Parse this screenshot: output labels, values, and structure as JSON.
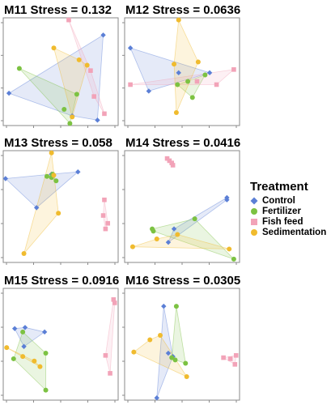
{
  "legend": {
    "title": "Treatment",
    "items": [
      {
        "label": "Control",
        "color": "#5b7fd6",
        "shape": "diamond"
      },
      {
        "label": "Fertilizer",
        "color": "#7cc242",
        "shape": "circle"
      },
      {
        "label": "Fish feed",
        "color": "#f2a3b8",
        "shape": "square"
      },
      {
        "label": "Sedimentation",
        "color": "#f0bb2e",
        "shape": "circle"
      }
    ]
  },
  "chart_data": [
    {
      "type": "scatter",
      "title": "M11 Stress = 0.132",
      "series": [
        {
          "name": "Control",
          "points": [
            [
              0.05,
              0.7
            ],
            [
              0.87,
              0.16
            ],
            [
              0.82,
              0.95
            ],
            [
              0.6,
              0.91
            ]
          ]
        },
        {
          "name": "Fertilizer",
          "points": [
            [
              0.14,
              0.47
            ],
            [
              0.64,
              0.71
            ],
            [
              0.53,
              0.85
            ],
            [
              0.58,
              0.98
            ]
          ]
        },
        {
          "name": "Fish feed",
          "points": [
            [
              0.57,
              0.02
            ],
            [
              0.76,
              0.49
            ],
            [
              0.79,
              0.73
            ],
            [
              0.88,
              0.89
            ]
          ]
        },
        {
          "name": "Sedimentation",
          "points": [
            [
              0.44,
              0.28
            ],
            [
              0.66,
              0.39
            ],
            [
              0.73,
              0.44
            ],
            [
              0.6,
              0.92
            ]
          ]
        }
      ]
    },
    {
      "type": "scatter",
      "title": "M12 Stress = 0.0636",
      "series": [
        {
          "name": "Control",
          "points": [
            [
              0.05,
              0.28
            ],
            [
              0.47,
              0.51
            ],
            [
              0.21,
              0.68
            ],
            [
              0.74,
              0.51
            ]
          ]
        },
        {
          "name": "Fertilizer",
          "points": [
            [
              0.46,
              0.62
            ],
            [
              0.55,
              0.59
            ],
            [
              0.7,
              0.53
            ],
            [
              0.59,
              0.74
            ]
          ]
        },
        {
          "name": "Fish feed",
          "points": [
            [
              0.05,
              0.62
            ],
            [
              0.63,
              0.59
            ],
            [
              0.95,
              0.48
            ],
            [
              0.8,
              0.62
            ]
          ]
        },
        {
          "name": "Sedimentation",
          "points": [
            [
              0.47,
              0.02
            ],
            [
              0.43,
              0.43
            ],
            [
              0.45,
              0.88
            ],
            [
              0.64,
              0.41
            ]
          ]
        }
      ]
    },
    {
      "type": "scatter",
      "title": "M13 Stress = 0.058",
      "series": [
        {
          "name": "Control",
          "points": [
            [
              0.02,
              0.25
            ],
            [
              0.29,
              0.51
            ],
            [
              0.42,
              0.21
            ],
            [
              0.65,
              0.19
            ]
          ]
        },
        {
          "name": "Fertilizer",
          "points": [
            [
              0.38,
              0.23
            ],
            [
              0.42,
              0.24
            ],
            [
              0.46,
              0.27
            ],
            [
              0.43,
              0.21
            ]
          ]
        },
        {
          "name": "Fish feed",
          "points": [
            [
              0.88,
              0.44
            ],
            [
              0.91,
              0.65
            ],
            [
              0.89,
              0.7
            ],
            [
              0.87,
              0.58
            ]
          ]
        },
        {
          "name": "Sedimentation",
          "points": [
            [
              0.42,
              0.02
            ],
            [
              0.48,
              0.56
            ],
            [
              0.18,
              0.92
            ],
            [
              0.44,
              0.22
            ]
          ]
        }
      ]
    },
    {
      "type": "scatter",
      "title": "M14 Stress = 0.0416",
      "series": [
        {
          "name": "Control",
          "points": [
            [
              0.89,
              0.44
            ],
            [
              0.38,
              0.82
            ],
            [
              0.43,
              0.7
            ],
            [
              0.89,
              0.42
            ]
          ]
        },
        {
          "name": "Fertilizer",
          "points": [
            [
              0.61,
              0.61
            ],
            [
              0.95,
              0.97
            ],
            [
              0.24,
              0.7
            ],
            [
              0.25,
              0.72
            ]
          ]
        },
        {
          "name": "Fish feed",
          "points": [
            [
              0.37,
              0.07
            ],
            [
              0.41,
              0.11
            ],
            [
              0.42,
              0.13
            ],
            [
              0.39,
              0.09
            ]
          ]
        },
        {
          "name": "Sedimentation",
          "points": [
            [
              0.07,
              0.86
            ],
            [
              0.28,
              0.79
            ],
            [
              0.91,
              0.88
            ],
            [
              0.46,
              0.75
            ]
          ]
        }
      ]
    },
    {
      "type": "scatter",
      "title": "M15 Stress = 0.0916",
      "series": [
        {
          "name": "Control",
          "points": [
            [
              0.1,
              0.36
            ],
            [
              0.19,
              0.35
            ],
            [
              0.36,
              0.39
            ],
            [
              0.18,
              0.52
            ]
          ]
        },
        {
          "name": "Fertilizer",
          "points": [
            [
              0.09,
              0.63
            ],
            [
              0.37,
              0.58
            ],
            [
              0.37,
              0.91
            ],
            [
              0.17,
              0.39
            ]
          ]
        },
        {
          "name": "Fish feed",
          "points": [
            [
              0.97,
              0.13
            ],
            [
              0.93,
              0.76
            ],
            [
              0.89,
              0.6
            ],
            [
              0.96,
              0.1
            ]
          ]
        },
        {
          "name": "Sedimentation",
          "points": [
            [
              0.03,
              0.53
            ],
            [
              0.17,
              0.61
            ],
            [
              0.27,
              0.65
            ],
            [
              0.32,
              0.7
            ]
          ]
        }
      ]
    },
    {
      "type": "scatter",
      "title": "M16 Stress = 0.0305",
      "series": [
        {
          "name": "Control",
          "points": [
            [
              0.34,
              0.16
            ],
            [
              0.28,
              0.98
            ],
            [
              0.42,
              0.61
            ],
            [
              0.38,
              0.58
            ]
          ]
        },
        {
          "name": "Fertilizer",
          "points": [
            [
              0.45,
              0.16
            ],
            [
              0.53,
              0.67
            ],
            [
              0.41,
              0.62
            ],
            [
              0.44,
              0.64
            ]
          ]
        },
        {
          "name": "Fish feed",
          "points": [
            [
              0.86,
              0.62
            ],
            [
              0.97,
              0.6
            ],
            [
              0.96,
              0.68
            ],
            [
              0.92,
              0.63
            ]
          ]
        },
        {
          "name": "Sedimentation",
          "points": [
            [
              0.08,
              0.57
            ],
            [
              0.22,
              0.46
            ],
            [
              0.31,
              0.42
            ],
            [
              0.54,
              0.79
            ]
          ]
        }
      ]
    }
  ]
}
